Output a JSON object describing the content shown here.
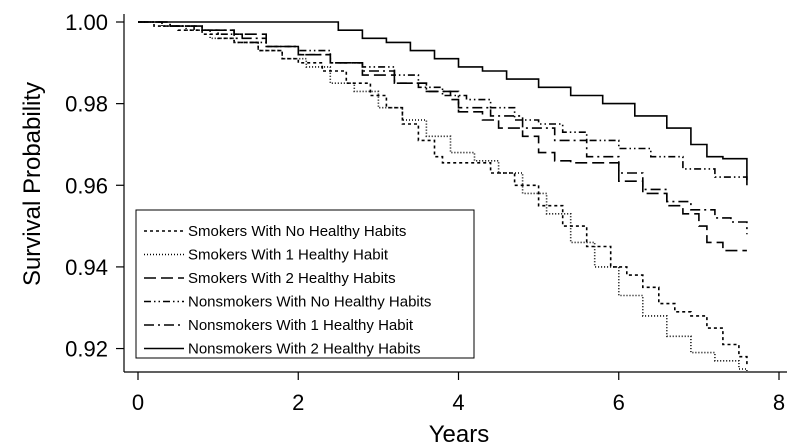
{
  "chart_data": {
    "type": "line",
    "title": "",
    "xlabel": "Years",
    "ylabel": "Survival Probability",
    "xlim": [
      0,
      8
    ],
    "ylim": [
      0.9145,
      1.0
    ],
    "xticks": [
      0,
      2,
      4,
      6,
      8
    ],
    "yticks": [
      0.92,
      0.94,
      0.96,
      0.98,
      1.0
    ],
    "xtick_labels": [
      "0",
      "2",
      "4",
      "6",
      "8"
    ],
    "ytick_labels": [
      "0.92",
      "0.94",
      "0.96",
      "0.98",
      "1.00"
    ],
    "grid": false,
    "legend_position": "bottom-left",
    "series": [
      {
        "name": "Smokers With No Healthy Habits",
        "dash": "short-dash",
        "points": [
          [
            0,
            1.0
          ],
          [
            0.2,
            0.999
          ],
          [
            0.5,
            0.998
          ],
          [
            0.8,
            0.997
          ],
          [
            1.0,
            0.996
          ],
          [
            1.2,
            0.995
          ],
          [
            1.5,
            0.993
          ],
          [
            1.8,
            0.991
          ],
          [
            2.0,
            0.99
          ],
          [
            2.3,
            0.988
          ],
          [
            2.6,
            0.985
          ],
          [
            2.9,
            0.982
          ],
          [
            3.1,
            0.979
          ],
          [
            3.3,
            0.975
          ],
          [
            3.5,
            0.971
          ],
          [
            3.7,
            0.967
          ],
          [
            3.8,
            0.9655
          ],
          [
            4.2,
            0.9655
          ],
          [
            4.4,
            0.963
          ],
          [
            4.7,
            0.96
          ],
          [
            5.0,
            0.955
          ],
          [
            5.3,
            0.95
          ],
          [
            5.6,
            0.945
          ],
          [
            5.9,
            0.94
          ],
          [
            6.1,
            0.938
          ],
          [
            6.3,
            0.935
          ],
          [
            6.5,
            0.931
          ],
          [
            6.7,
            0.929
          ],
          [
            6.9,
            0.928
          ],
          [
            7.1,
            0.925
          ],
          [
            7.3,
            0.921
          ],
          [
            7.5,
            0.918
          ],
          [
            7.6,
            0.916
          ]
        ]
      },
      {
        "name": "Smokers With 1 Healthy Habit",
        "dash": "dotted",
        "points": [
          [
            0,
            1.0
          ],
          [
            0.3,
            0.999
          ],
          [
            0.6,
            0.998
          ],
          [
            0.9,
            0.996
          ],
          [
            1.2,
            0.995
          ],
          [
            1.5,
            0.993
          ],
          [
            1.8,
            0.991
          ],
          [
            2.1,
            0.989
          ],
          [
            2.4,
            0.985
          ],
          [
            2.7,
            0.983
          ],
          [
            3.0,
            0.979
          ],
          [
            3.3,
            0.976
          ],
          [
            3.6,
            0.972
          ],
          [
            3.9,
            0.968
          ],
          [
            4.2,
            0.966
          ],
          [
            4.5,
            0.963
          ],
          [
            4.8,
            0.958
          ],
          [
            5.1,
            0.953
          ],
          [
            5.4,
            0.946
          ],
          [
            5.7,
            0.94
          ],
          [
            6.0,
            0.933
          ],
          [
            6.3,
            0.928
          ],
          [
            6.6,
            0.923
          ],
          [
            6.9,
            0.919
          ],
          [
            7.2,
            0.917
          ],
          [
            7.5,
            0.915
          ],
          [
            7.6,
            0.9145
          ]
        ]
      },
      {
        "name": "Smokers With 2 Healthy Habits",
        "dash": "long-dash",
        "points": [
          [
            0,
            1.0
          ],
          [
            0.4,
            0.999
          ],
          [
            0.8,
            0.998
          ],
          [
            1.2,
            0.997
          ],
          [
            1.6,
            0.994
          ],
          [
            2.0,
            0.992
          ],
          [
            2.4,
            0.99
          ],
          [
            2.8,
            0.987
          ],
          [
            3.2,
            0.985
          ],
          [
            3.6,
            0.983
          ],
          [
            3.9,
            0.981
          ],
          [
            4.0,
            0.978
          ],
          [
            4.3,
            0.976
          ],
          [
            4.5,
            0.974
          ],
          [
            4.8,
            0.972
          ],
          [
            5.0,
            0.968
          ],
          [
            5.2,
            0.966
          ],
          [
            5.4,
            0.9655
          ],
          [
            5.9,
            0.9655
          ],
          [
            6.0,
            0.961
          ],
          [
            6.3,
            0.958
          ],
          [
            6.6,
            0.955
          ],
          [
            6.8,
            0.953
          ],
          [
            7.0,
            0.95
          ],
          [
            7.1,
            0.946
          ],
          [
            7.3,
            0.944
          ],
          [
            7.6,
            0.944
          ]
        ]
      },
      {
        "name": "Nonsmokers With No Healthy Habits",
        "dash": "dash-dot-dot",
        "points": [
          [
            0,
            1.0
          ],
          [
            0.3,
            0.999
          ],
          [
            0.7,
            0.998
          ],
          [
            1.0,
            0.997
          ],
          [
            1.3,
            0.995
          ],
          [
            1.6,
            0.994
          ],
          [
            2.0,
            0.993
          ],
          [
            2.4,
            0.99
          ],
          [
            2.8,
            0.989
          ],
          [
            3.2,
            0.987
          ],
          [
            3.5,
            0.984
          ],
          [
            3.8,
            0.982
          ],
          [
            4.1,
            0.981
          ],
          [
            4.4,
            0.979
          ],
          [
            4.7,
            0.976
          ],
          [
            5.0,
            0.975
          ],
          [
            5.3,
            0.973
          ],
          [
            5.6,
            0.971
          ],
          [
            6.0,
            0.969
          ],
          [
            6.4,
            0.967
          ],
          [
            6.8,
            0.964
          ],
          [
            7.2,
            0.962
          ],
          [
            7.6,
            0.961
          ]
        ]
      },
      {
        "name": "Nonsmokers With 1 Healthy Habit",
        "dash": "dash-dot",
        "points": [
          [
            0,
            1.0
          ],
          [
            0.4,
            0.999
          ],
          [
            0.8,
            0.998
          ],
          [
            1.2,
            0.996
          ],
          [
            1.6,
            0.994
          ],
          [
            2.0,
            0.992
          ],
          [
            2.4,
            0.99
          ],
          [
            2.8,
            0.988
          ],
          [
            3.2,
            0.985
          ],
          [
            3.6,
            0.983
          ],
          [
            4.0,
            0.979
          ],
          [
            4.4,
            0.977
          ],
          [
            4.8,
            0.974
          ],
          [
            5.2,
            0.971
          ],
          [
            5.6,
            0.967
          ],
          [
            6.0,
            0.963
          ],
          [
            6.3,
            0.959
          ],
          [
            6.6,
            0.956
          ],
          [
            6.9,
            0.954
          ],
          [
            7.2,
            0.952
          ],
          [
            7.4,
            0.951
          ],
          [
            7.6,
            0.948
          ]
        ]
      },
      {
        "name": "Nonsmokers With 2 Healthy Habits",
        "dash": "solid",
        "points": [
          [
            0,
            1.0
          ],
          [
            2.3,
            1.0
          ],
          [
            2.5,
            0.998
          ],
          [
            2.8,
            0.996
          ],
          [
            3.1,
            0.995
          ],
          [
            3.4,
            0.993
          ],
          [
            3.7,
            0.991
          ],
          [
            4.0,
            0.989
          ],
          [
            4.3,
            0.988
          ],
          [
            4.6,
            0.986
          ],
          [
            5.0,
            0.984
          ],
          [
            5.4,
            0.982
          ],
          [
            5.8,
            0.98
          ],
          [
            6.2,
            0.977
          ],
          [
            6.6,
            0.974
          ],
          [
            6.9,
            0.97
          ],
          [
            7.1,
            0.967
          ],
          [
            7.3,
            0.9665
          ],
          [
            7.6,
            0.9665
          ],
          [
            7.6,
            0.96
          ]
        ]
      }
    ]
  }
}
